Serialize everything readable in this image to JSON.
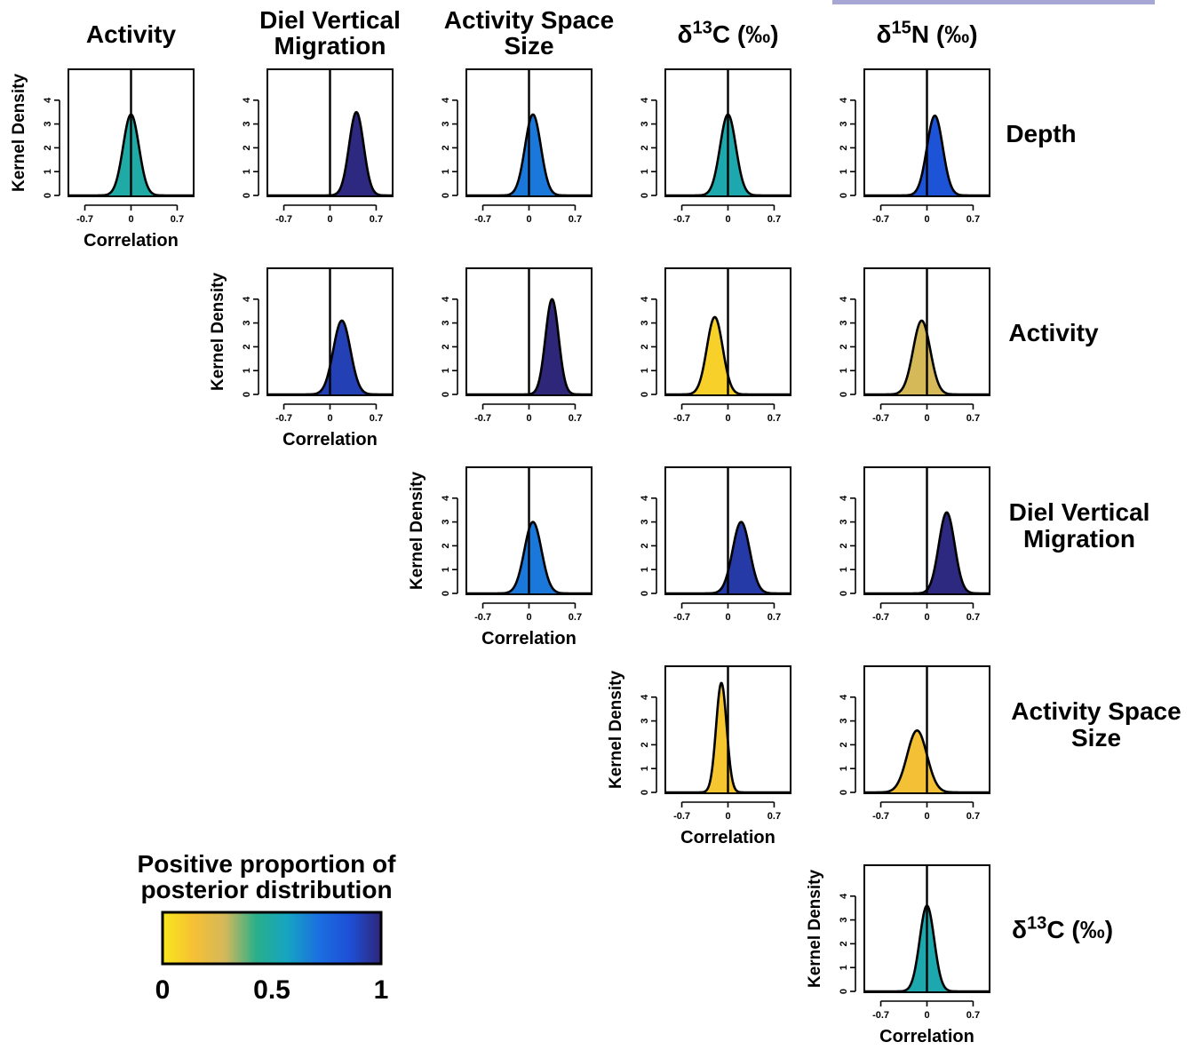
{
  "chart_data": {
    "type": "density-matrix",
    "column_headers": [
      "Activity",
      "Diel Vertical\nMigration",
      "Activity Space\nSize",
      "δ13C (‰)",
      "δ15N (‰)"
    ],
    "row_labels": [
      "Depth",
      "Activity",
      "Diel Vertical\nMigration",
      "Activity Space\nSize",
      "δ13C (‰)"
    ],
    "xlabel": "Correlation",
    "ylabel": "Kernel Density",
    "xlim": [
      -0.95,
      0.95
    ],
    "ylim": [
      0,
      4.7
    ],
    "x_ticks": [
      -0.7,
      0,
      0.7
    ],
    "x_tick_labels": [
      "-0.7",
      "0",
      "0.7"
    ],
    "y_ticks": [
      0,
      1,
      2,
      3,
      4
    ],
    "y_tick_labels": [
      "0",
      "1",
      "2",
      "3",
      "4"
    ],
    "vline_x": 0,
    "panels": [
      {
        "row": 0,
        "col": 0,
        "mean": 0.0,
        "sd": 0.12,
        "peak": 3.4,
        "positive_proportion": 0.5
      },
      {
        "row": 0,
        "col": 1,
        "mean": 0.4,
        "sd": 0.11,
        "peak": 3.5,
        "positive_proportion": 0.99
      },
      {
        "row": 0,
        "col": 2,
        "mean": 0.06,
        "sd": 0.12,
        "peak": 3.4,
        "positive_proportion": 0.69
      },
      {
        "row": 0,
        "col": 3,
        "mean": 0.0,
        "sd": 0.12,
        "peak": 3.4,
        "positive_proportion": 0.52
      },
      {
        "row": 0,
        "col": 4,
        "mean": 0.12,
        "sd": 0.12,
        "peak": 3.35,
        "positive_proportion": 0.84
      },
      {
        "row": 1,
        "col": 1,
        "mean": 0.18,
        "sd": 0.13,
        "peak": 3.1,
        "positive_proportion": 0.91
      },
      {
        "row": 1,
        "col": 2,
        "mean": 0.35,
        "sd": 0.1,
        "peak": 4.0,
        "positive_proportion": 1.0
      },
      {
        "row": 1,
        "col": 3,
        "mean": -0.2,
        "sd": 0.12,
        "peak": 3.25,
        "positive_proportion": 0.08
      },
      {
        "row": 1,
        "col": 4,
        "mean": -0.08,
        "sd": 0.13,
        "peak": 3.1,
        "positive_proportion": 0.28
      },
      {
        "row": 2,
        "col": 2,
        "mean": 0.06,
        "sd": 0.13,
        "peak": 3.0,
        "positive_proportion": 0.69
      },
      {
        "row": 2,
        "col": 3,
        "mean": 0.2,
        "sd": 0.13,
        "peak": 3.0,
        "positive_proportion": 0.93
      },
      {
        "row": 2,
        "col": 4,
        "mean": 0.3,
        "sd": 0.12,
        "peak": 3.4,
        "positive_proportion": 0.99
      },
      {
        "row": 3,
        "col": 3,
        "mean": -0.1,
        "sd": 0.08,
        "peak": 4.6,
        "positive_proportion": 0.12
      },
      {
        "row": 3,
        "col": 4,
        "mean": -0.15,
        "sd": 0.15,
        "peak": 2.6,
        "positive_proportion": 0.15
      },
      {
        "row": 4,
        "col": 4,
        "mean": 0.0,
        "sd": 0.11,
        "peak": 3.6,
        "positive_proportion": 0.52
      }
    ],
    "legend": {
      "title": "Positive proportion of\nposterior distribution",
      "tick_labels": [
        "0",
        "0.5",
        "1"
      ],
      "colormap": [
        "#f8e71c",
        "#f6c034",
        "#d4b85a",
        "#2aaf8a",
        "#16a4c2",
        "#1b6fe0",
        "#1d4fd6",
        "#2e2679"
      ]
    },
    "colors": {
      "line": "#000000"
    }
  }
}
